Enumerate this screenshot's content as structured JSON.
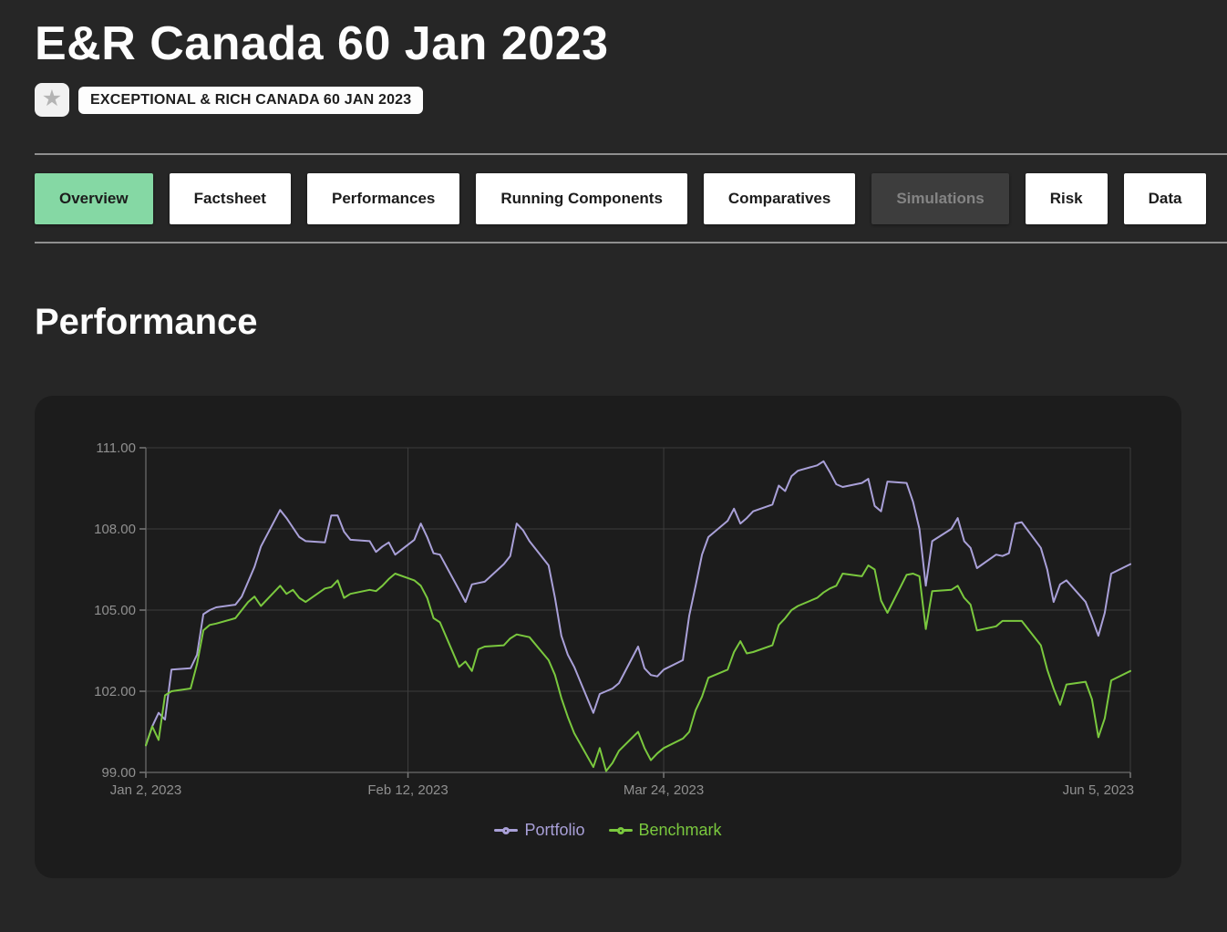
{
  "header": {
    "title": "E&R Canada 60 Jan 2023",
    "badge": "EXCEPTIONAL & RICH CANADA 60 JAN 2023",
    "star_icon": "star"
  },
  "tabs": [
    {
      "label": "Overview",
      "state": "active"
    },
    {
      "label": "Factsheet",
      "state": "normal"
    },
    {
      "label": "Performances",
      "state": "normal"
    },
    {
      "label": "Running Components",
      "state": "normal"
    },
    {
      "label": "Comparatives",
      "state": "normal"
    },
    {
      "label": "Simulations",
      "state": "disabled"
    },
    {
      "label": "Risk",
      "state": "normal"
    },
    {
      "label": "Data",
      "state": "normal"
    }
  ],
  "section": {
    "heading": "Performance"
  },
  "colors": {
    "page_bg": "#262626",
    "panel_bg": "#1c1c1c",
    "active_tab": "#85d8a4",
    "grid": "#3d3d3d",
    "axis": "#5f5f5f",
    "tick": "#777777",
    "axis_label": "#909090",
    "portfolio": "#a9a0d8",
    "benchmark": "#7ac83e"
  },
  "chart_data": {
    "type": "line",
    "title": "Performance",
    "xlabel": "",
    "ylabel": "",
    "grid": true,
    "legend_position": "bottom",
    "frequency": "business-daily",
    "x_axis": {
      "start": "Jan 2, 2023",
      "end": "Jun 5, 2023",
      "total_days": 154,
      "tick_labels": [
        "Jan 2, 2023",
        "Feb 12, 2023",
        "Mar 24, 2023",
        "Jun 5, 2023"
      ],
      "tick_day_offsets": [
        0,
        41,
        81,
        154
      ]
    },
    "y_axis": {
      "min": 99,
      "max": 111,
      "tick_values": [
        99,
        102,
        105,
        108,
        111
      ],
      "tick_labels": [
        "99.00",
        "102.00",
        "105.00",
        "108.00",
        "111.00"
      ]
    },
    "ylim": [
      99,
      111
    ],
    "series": [
      {
        "name": "Portfolio",
        "color": "#a9a0d8",
        "values": [
          100.0,
          100.7,
          101.2,
          100.95,
          102.8,
          102.85,
          103.35,
          104.85,
          105.0,
          105.1,
          105.2,
          105.5,
          106.05,
          106.6,
          107.35,
          108.7,
          108.4,
          108.05,
          107.7,
          107.55,
          107.5,
          108.5,
          108.5,
          107.9,
          107.6,
          107.55,
          107.15,
          107.35,
          107.5,
          107.05,
          107.6,
          108.2,
          107.7,
          107.1,
          107.05,
          105.75,
          105.3,
          105.95,
          106.0,
          106.05,
          106.7,
          107.0,
          108.2,
          107.95,
          107.55,
          106.65,
          105.45,
          104.05,
          103.35,
          102.9,
          101.2,
          101.9,
          102.0,
          102.1,
          102.3,
          103.65,
          102.85,
          102.6,
          102.55,
          102.8,
          103.15,
          104.8,
          105.9,
          107.05,
          107.7,
          108.3,
          108.75,
          108.2,
          108.4,
          108.65,
          108.9,
          109.6,
          109.4,
          109.95,
          110.15,
          110.35,
          110.5,
          110.1,
          109.65,
          109.55,
          109.7,
          109.85,
          108.85,
          108.65,
          109.75,
          109.7,
          109.0,
          108.0,
          105.9,
          107.55,
          108.0,
          108.4,
          107.55,
          107.3,
          106.55,
          107.05,
          107.0,
          107.1,
          108.2,
          108.25,
          107.3,
          106.5,
          105.3,
          105.95,
          106.1,
          105.3,
          104.7,
          104.05,
          104.9,
          106.35,
          106.7
        ]
      },
      {
        "name": "Benchmark",
        "color": "#7ac83e",
        "values": [
          100.0,
          100.7,
          100.2,
          101.85,
          102.0,
          102.1,
          103.0,
          104.25,
          104.45,
          104.5,
          104.7,
          105.0,
          105.3,
          105.5,
          105.15,
          105.9,
          105.6,
          105.75,
          105.45,
          105.3,
          105.8,
          105.85,
          106.1,
          105.45,
          105.6,
          105.75,
          105.7,
          105.9,
          106.15,
          106.35,
          106.1,
          105.9,
          105.45,
          104.7,
          104.55,
          102.9,
          103.1,
          102.75,
          103.55,
          103.65,
          103.7,
          103.95,
          104.1,
          104.05,
          104.0,
          103.15,
          102.6,
          101.75,
          101.05,
          100.45,
          99.2,
          99.9,
          99.05,
          99.35,
          99.8,
          100.5,
          99.9,
          99.45,
          99.7,
          99.9,
          100.25,
          100.5,
          101.3,
          101.8,
          102.5,
          102.8,
          103.45,
          103.85,
          103.4,
          103.45,
          103.7,
          104.45,
          104.7,
          105.0,
          105.15,
          105.45,
          105.65,
          105.8,
          105.9,
          106.35,
          106.25,
          106.65,
          106.5,
          105.35,
          104.9,
          106.3,
          106.35,
          106.25,
          104.3,
          105.7,
          105.75,
          105.9,
          105.45,
          105.2,
          104.25,
          104.4,
          104.6,
          104.6,
          104.6,
          104.6,
          103.7,
          102.8,
          102.1,
          101.5,
          102.25,
          102.35,
          101.7,
          100.3,
          101.0,
          102.4,
          102.75
        ]
      }
    ]
  }
}
